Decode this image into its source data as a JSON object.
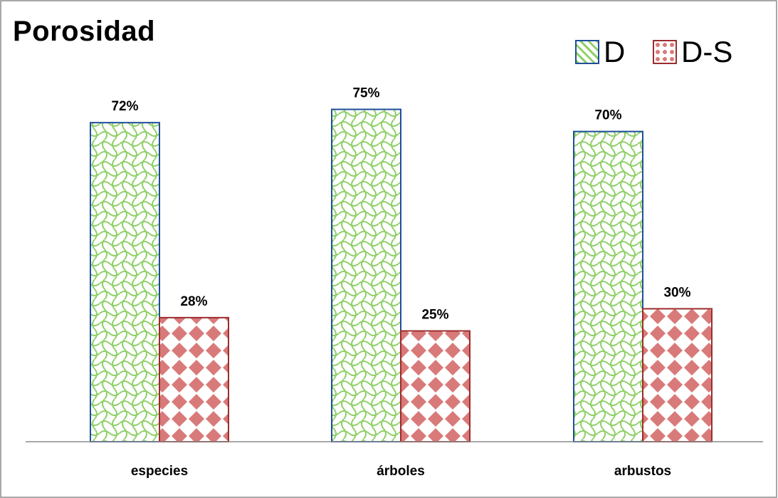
{
  "chart_data": {
    "type": "bar",
    "title": "Porosidad",
    "categories": [
      "especies",
      "árboles",
      "arbustos"
    ],
    "series": [
      {
        "name": "D",
        "values": [
          72,
          75,
          70
        ],
        "labels": [
          "72%",
          "75%",
          "70%"
        ],
        "fill": "#8fd068",
        "stroke": "#1f4e9b"
      },
      {
        "name": "D-S",
        "values": [
          28,
          25,
          30
        ],
        "labels": [
          "28%",
          "25%",
          "30%"
        ],
        "fill": "#d97a7a",
        "stroke": "#9b2d2d"
      }
    ],
    "ylim": [
      0,
      100
    ],
    "grid": false,
    "legend": "top-right",
    "value_axis_visible": false
  }
}
